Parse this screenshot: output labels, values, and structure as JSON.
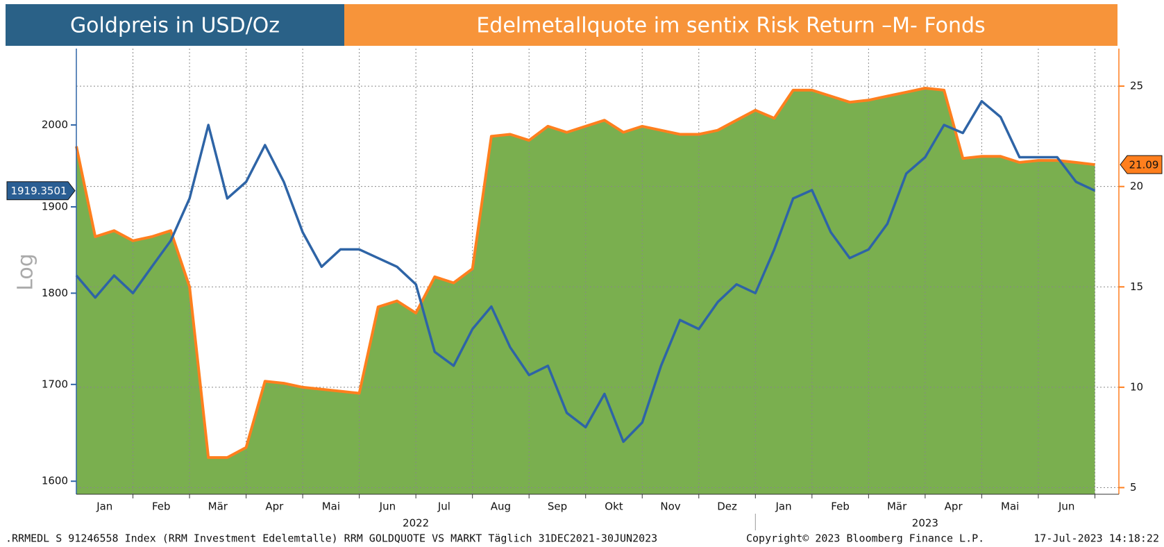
{
  "chart_data": {
    "type": "line",
    "header_left": "Goldpreis in USD/Oz",
    "header_right": "Edelmetallquote im sentix Risk Return –M- Fonds",
    "ylabel": "Log",
    "ylog": true,
    "grid": true,
    "months": [
      "Jan",
      "Feb",
      "Mär",
      "Apr",
      "Mai",
      "Jun",
      "Jul",
      "Aug",
      "Sep",
      "Okt",
      "Nov",
      "Dez",
      "Jan",
      "Feb",
      "Mär",
      "Apr",
      "Mai",
      "Jun"
    ],
    "years": [
      "2022",
      "2023"
    ],
    "ylim": [
      1587,
      2098
    ],
    "yticks": [
      1600,
      1700,
      1800,
      1900,
      2000
    ],
    "y2lim": [
      4.67,
      26.87
    ],
    "y2ticks": [
      5,
      10,
      15,
      20,
      25
    ],
    "series": [
      {
        "name": "Goldpreis in USD/Oz",
        "color": "#2e64a6",
        "values": [
          1820,
          1795,
          1820,
          1800,
          1830,
          1860,
          1910,
          2000,
          1910,
          1930,
          1975,
          1930,
          1870,
          1830,
          1850,
          1850,
          1840,
          1830,
          1810,
          1735,
          1720,
          1760,
          1785,
          1740,
          1710,
          1720,
          1670,
          1655,
          1690,
          1640,
          1660,
          1720,
          1770,
          1760,
          1790,
          1810,
          1800,
          1850,
          1910,
          1920,
          1870,
          1840,
          1850,
          1880,
          1940,
          1960,
          2000,
          1990,
          2030,
          2010,
          1960,
          1960,
          1960,
          1930,
          1919.3501
        ]
      },
      {
        "name": "Edelmetallquote im sentix Risk Return –M- Fonds",
        "color": "#ff7f1e",
        "fill": "#7aaf4f",
        "axis": "y2",
        "values": [
          22,
          17.5,
          17.8,
          17.3,
          17.5,
          17.8,
          15,
          6.5,
          6.5,
          7,
          10.3,
          10.2,
          10,
          9.9,
          9.8,
          9.7,
          14,
          14.3,
          13.7,
          15.5,
          15.2,
          15.9,
          22.5,
          22.6,
          22.3,
          23,
          22.7,
          23,
          23.3,
          22.7,
          23,
          22.8,
          22.6,
          22.6,
          22.8,
          23.3,
          23.8,
          23.4,
          24.8,
          24.8,
          24.5,
          24.2,
          24.3,
          24.5,
          24.7,
          24.9,
          24.8,
          21.4,
          21.5,
          21.5,
          21.2,
          21.3,
          21.3,
          21.2,
          21.09
        ]
      }
    ],
    "footer_left": ".RRMEDL S 91246558 Index (RRM Investment Edelemtalle) RRM GOLDQUOTE VS MARKT  Täglich 31DEC2021-30JUN2023",
    "footer_center": "Copyright© 2023 Bloomberg Finance L.P.",
    "footer_right": "17-Jul-2023 14:18:22"
  }
}
